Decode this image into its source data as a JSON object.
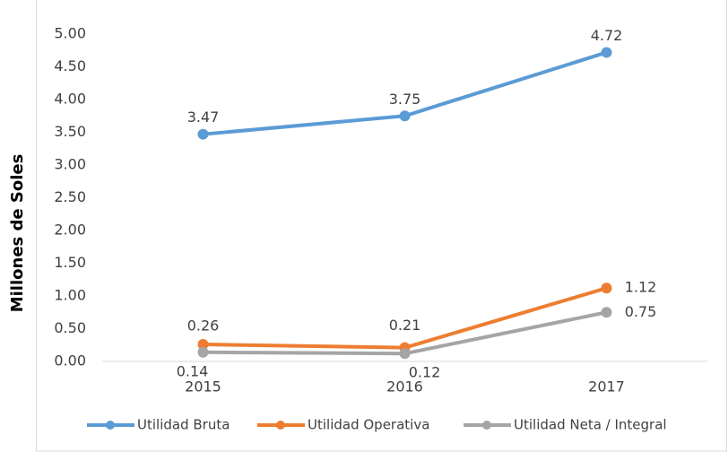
{
  "chart_data": {
    "type": "line",
    "y_label": "Millones de Soles",
    "categories": [
      "2015",
      "2016",
      "2017"
    ],
    "series": [
      {
        "name": "Utilidad Bruta",
        "color": "#5b9bd5",
        "values": [
          3.47,
          3.75,
          4.72
        ]
      },
      {
        "name": "Utilidad Operativa",
        "color": "#ed7d31",
        "values": [
          0.26,
          0.21,
          1.12
        ]
      },
      {
        "name": "Utilidad Neta / Integral",
        "color": "#a5a5a5",
        "values": [
          0.14,
          0.12,
          0.75
        ]
      }
    ],
    "ylim": [
      0,
      5
    ],
    "yticks": [
      {
        "value": 0,
        "label": "0.00"
      },
      {
        "value": 0.5,
        "label": "0.50"
      },
      {
        "value": 1,
        "label": "1.00"
      },
      {
        "value": 1.5,
        "label": "1.50"
      },
      {
        "value": 2,
        "label": "2.00"
      },
      {
        "value": 2.5,
        "label": "2.50"
      },
      {
        "value": 3,
        "label": "3.00"
      },
      {
        "value": 3.5,
        "label": "3.50"
      },
      {
        "value": 4,
        "label": "4.00"
      },
      {
        "value": 4.5,
        "label": "4.50"
      },
      {
        "value": 5,
        "label": "5.00"
      }
    ],
    "grid": false,
    "legend": "bottom"
  }
}
